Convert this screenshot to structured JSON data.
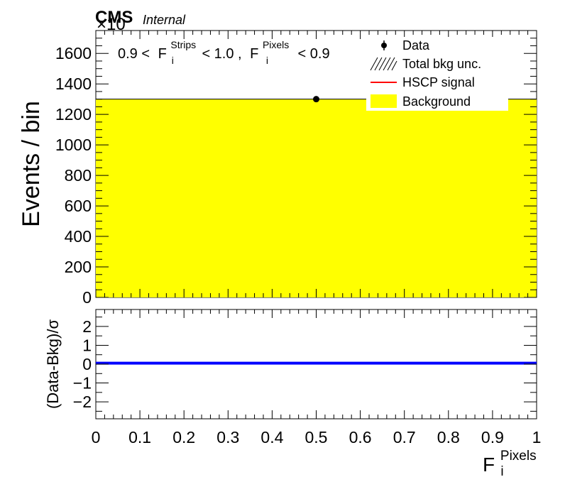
{
  "header": {
    "experiment": "CMS",
    "status": "Internal",
    "exponent": "×10"
  },
  "cut_label": {
    "low": "0.9 <",
    "strips_base": "F",
    "strips_sub": "i",
    "strips_sup": "Strips",
    "mid": "< 1.0 ,",
    "pixels_base": "F",
    "pixels_sub": "i",
    "pixels_sup": "Pixels",
    "high": "< 0.9"
  },
  "legend": {
    "data": "Data",
    "unc": "Total bkg unc.",
    "signal": "HSCP signal",
    "background": "Background"
  },
  "colors": {
    "background_fill": "#ffff00",
    "signal": "#ff0000",
    "pull_line": "#0000ff",
    "data": "#000000"
  },
  "chart_data": [
    {
      "type": "bar",
      "panel": "main",
      "ylabel": "Events / bin",
      "xlim": [
        0,
        1
      ],
      "ylim": [
        0,
        1750
      ],
      "yticks": [
        0,
        200,
        400,
        600,
        800,
        1000,
        1200,
        1400,
        1600
      ],
      "ytick_labels": [
        "0",
        "200",
        "400",
        "600",
        "800",
        "1000",
        "1200",
        "1400",
        "1600"
      ],
      "series": [
        {
          "name": "Background",
          "kind": "histogram",
          "bins": [
            [
              0,
              1
            ]
          ],
          "values": [
            1300
          ]
        },
        {
          "name": "Data",
          "kind": "points",
          "x": [
            0.5
          ],
          "y": [
            1300
          ]
        }
      ]
    },
    {
      "type": "line",
      "panel": "ratio",
      "ylabel": "(Data-Bkg)/σ",
      "xlabel_base": "F",
      "xlabel_sub": "i",
      "xlabel_sup": "Pixels",
      "xlim": [
        0,
        1
      ],
      "ylim": [
        -2.9,
        2.9
      ],
      "yticks": [
        -2,
        -1,
        0,
        1,
        2
      ],
      "ytick_labels": [
        "−2",
        "−1",
        "0",
        "1",
        "2"
      ],
      "xticks": [
        0,
        0.1,
        0.2,
        0.3,
        0.4,
        0.5,
        0.6,
        0.7,
        0.8,
        0.9,
        1
      ],
      "xtick_labels": [
        "0",
        "0.1",
        "0.2",
        "0.3",
        "0.4",
        "0.5",
        "0.6",
        "0.7",
        "0.8",
        "0.9",
        "1"
      ],
      "series": [
        {
          "kind": "flat",
          "x": [
            0,
            1
          ],
          "y": [
            0.05,
            0.05
          ]
        }
      ]
    }
  ]
}
